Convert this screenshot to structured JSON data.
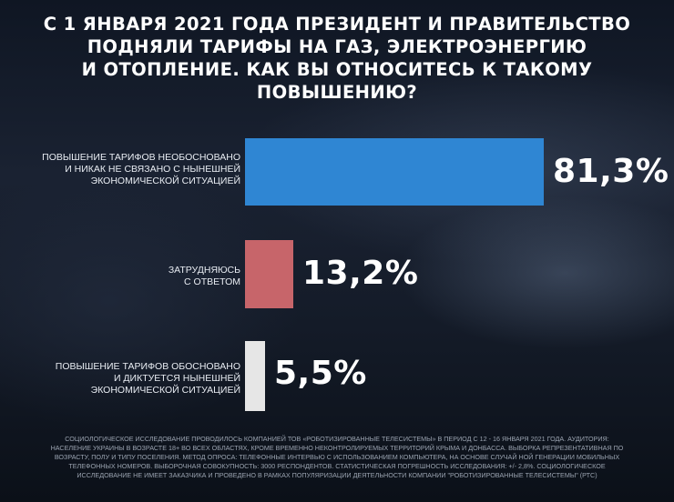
{
  "title_lines": [
    "С 1 ЯНВАРЯ 2021 ГОДА ПРЕЗИДЕНТ И ПРАВИТЕЛЬСТВО",
    "ПОДНЯЛИ ТАРИФЫ НА ГАЗ, ЭЛЕКТРОЭНЕРГИЮ",
    "И ОТОПЛЕНИЕ. КАК ВЫ ОТНОСИТЕСЬ К ТАКОМУ",
    "ПОВЫШЕНИЮ?"
  ],
  "colors": {
    "bar_1": "#2f86d3",
    "bar_2": "#c7656a",
    "bar_3": "#e6e6e6"
  },
  "chart_data": {
    "type": "bar",
    "orientation": "horizontal",
    "title": "С 1 ЯНВАРЯ 2021 ГОДА ПРЕЗИДЕНТ И ПРАВИТЕЛЬСТВО ПОДНЯЛИ ТАРИФЫ НА ГАЗ, ЭЛЕКТРОЭНЕРГИЮ И ОТОПЛЕНИЕ. КАК ВЫ ОТНОСИТЕСЬ К ТАКОМУ ПОВЫШЕНИЮ?",
    "categories": [
      [
        "Повышение тарифов необосновано",
        "и никак не связано с нынешней",
        "экономической ситуацией"
      ],
      [
        "Затрудняюсь",
        "с ответом"
      ],
      [
        "Повышение тарифов обосновано",
        "и диктуется нынешней",
        "экономической ситуацией"
      ]
    ],
    "values": [
      81.3,
      13.2,
      5.5
    ],
    "value_labels": [
      "81,3%",
      "13,2%",
      "5,5%"
    ],
    "unit": "%",
    "xlim": [
      0,
      81.3
    ],
    "grid": false,
    "legend": "none"
  },
  "footnote_lines": [
    "Социологическое исследование проводилось компанией   ТОВ «Роботизированные телесистемы» в период с 12 - 16 января 2021 года. Аудитория:",
    "население Украины в возрасте 18+ во всех областях, кроме временно неконтролируемых территорий   Крыма и Донбасса. Выборка репрезентативная по",
    "возрасту, полу и типу поселения. Метод опроса: телефонные интервью с использованием компьютера, на основе случай ной   генерации мобильных",
    "телефонных номеров. Выборочная совокупность: 3000 респондентов. Статистическая погрешность исследования: +/- 2,8%. Социологическое",
    "исследование не имеет заказчика и проведено в рамках популяризации деятельности компании \"Роботизированные телесистемы\" (РТС)"
  ]
}
